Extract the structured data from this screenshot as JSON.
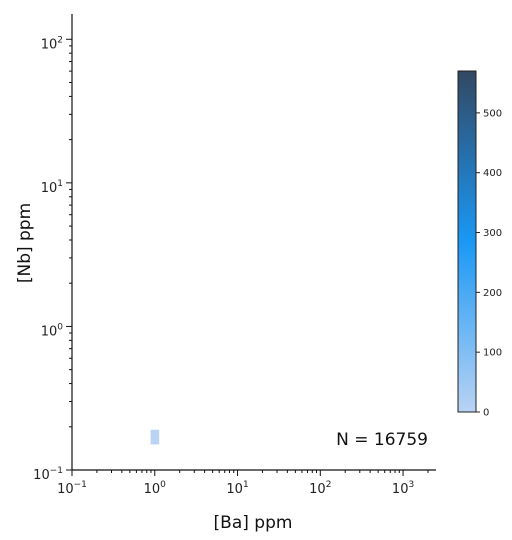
{
  "chart_data": {
    "type": "heatmap",
    "title": "",
    "xlabel": "[Ba] ppm",
    "ylabel": "[Nb] ppm",
    "xscale": "log",
    "yscale": "log",
    "xlim": [
      0.1,
      2500
    ],
    "ylim": [
      0.1,
      150
    ],
    "xticks": [
      {
        "value": 0.1,
        "base": "10",
        "exp": "−1"
      },
      {
        "value": 1,
        "base": "10",
        "exp": "0"
      },
      {
        "value": 10,
        "base": "10",
        "exp": "1"
      },
      {
        "value": 100,
        "base": "10",
        "exp": "2"
      },
      {
        "value": 1000,
        "base": "10",
        "exp": "3"
      }
    ],
    "yticks": [
      {
        "value": 0.1,
        "base": "10",
        "exp": "−1"
      },
      {
        "value": 1,
        "base": "10",
        "exp": "0"
      },
      {
        "value": 10,
        "base": "10",
        "exp": "1"
      },
      {
        "value": 100,
        "base": "10",
        "exp": "2"
      }
    ],
    "bins_per_decade": 10,
    "annotation": "N = 16759",
    "colorbar": {
      "min": 0,
      "max": 570,
      "ticks": [
        "0",
        "100",
        "200",
        "300",
        "400",
        "500"
      ],
      "colors": [
        "#b9d3f3",
        "#1a98f5",
        "#324863"
      ]
    },
    "cells": [
      {
        "x": 1,
        "y": 0.17,
        "count": 2
      }
    ]
  }
}
